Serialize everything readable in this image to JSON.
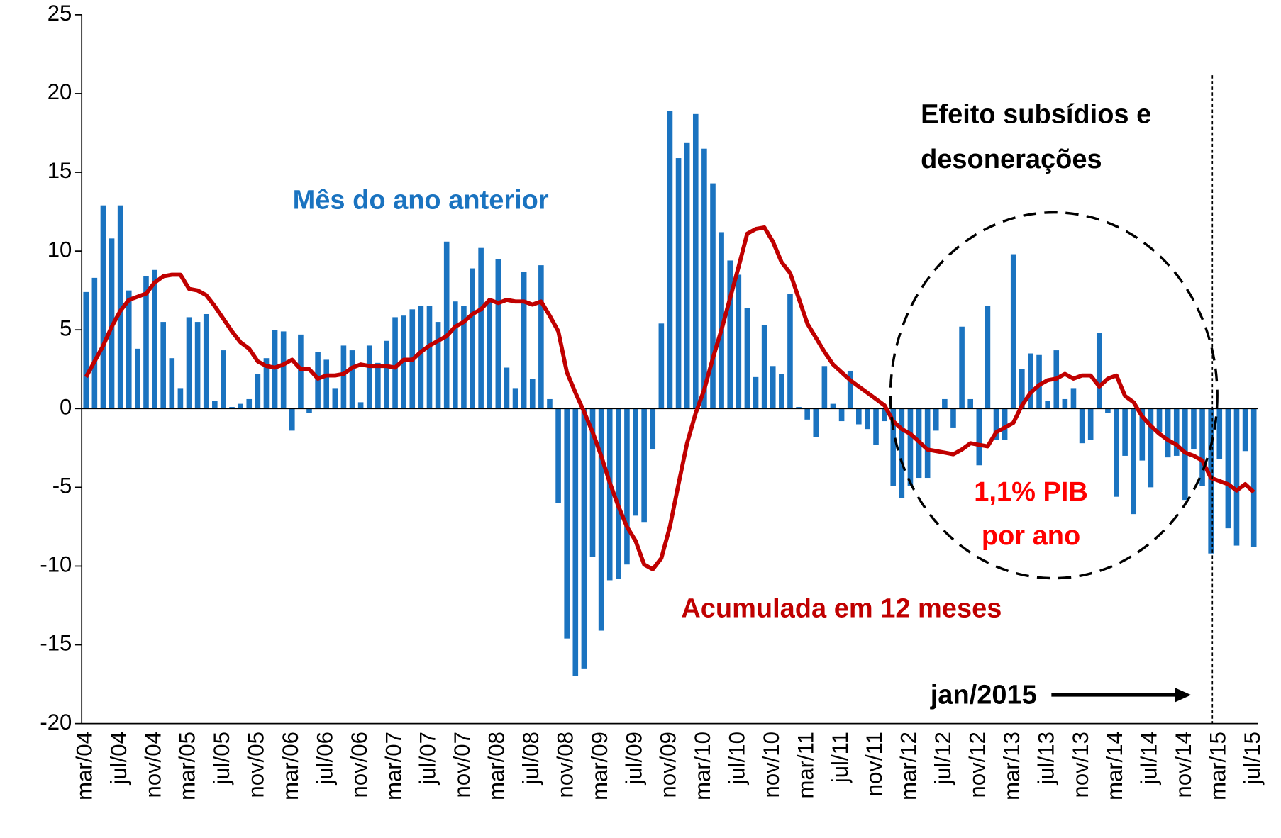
{
  "chart_data": {
    "type": "bar-line",
    "categories": [
      "mar/04",
      null,
      null,
      null,
      "jul/04",
      null,
      null,
      null,
      "nov/04",
      null,
      null,
      null,
      "mar/05",
      null,
      null,
      null,
      "jul/05",
      null,
      null,
      null,
      "nov/05",
      null,
      null,
      null,
      "mar/06",
      null,
      null,
      null,
      "jul/06",
      null,
      null,
      null,
      "nov/06",
      null,
      null,
      null,
      "mar/07",
      null,
      null,
      null,
      "jul/07",
      null,
      null,
      null,
      "nov/07",
      null,
      null,
      null,
      "mar/08",
      null,
      null,
      null,
      "jul/08",
      null,
      null,
      null,
      "nov/08",
      null,
      null,
      null,
      "mar/09",
      null,
      null,
      null,
      "jul/09",
      null,
      null,
      null,
      "nov/09",
      null,
      null,
      null,
      "mar/10",
      null,
      null,
      null,
      "jul/10",
      null,
      null,
      null,
      "nov/10",
      null,
      null,
      null,
      "mar/11",
      null,
      null,
      null,
      "jul/11",
      null,
      null,
      null,
      "nov/11",
      null,
      null,
      null,
      "mar/12",
      null,
      null,
      null,
      "jul/12",
      null,
      null,
      null,
      "nov/12",
      null,
      null,
      null,
      "mar/13",
      null,
      null,
      null,
      "jul/13",
      null,
      null,
      null,
      "nov/13",
      null,
      null,
      null,
      "mar/14",
      null,
      null,
      null,
      "jul/14",
      null,
      null,
      null,
      "nov/14",
      null,
      null,
      null,
      "mar/15",
      null,
      null,
      null,
      "jul/15"
    ],
    "series": [
      {
        "name": "Mês do ano anterior",
        "type": "bar",
        "color": "#1a73c0",
        "values": [
          7.4,
          8.3,
          12.9,
          10.8,
          12.9,
          7.5,
          3.8,
          8.4,
          8.8,
          5.5,
          3.2,
          1.3,
          5.8,
          5.5,
          6.0,
          0.5,
          3.7,
          0.1,
          0.3,
          0.6,
          2.2,
          3.2,
          5.0,
          4.9,
          -1.4,
          4.7,
          -0.3,
          3.6,
          3.1,
          1.3,
          4.0,
          3.7,
          0.4,
          4.0,
          2.9,
          4.3,
          5.8,
          5.9,
          6.3,
          6.5,
          6.5,
          5.5,
          10.6,
          6.8,
          6.5,
          8.9,
          10.2,
          6.9,
          9.5,
          2.6,
          1.3,
          8.7,
          1.9,
          9.1,
          0.6,
          -6.0,
          -14.6,
          -17.0,
          -16.5,
          -9.4,
          -14.1,
          -10.9,
          -10.8,
          -9.9,
          -6.8,
          -7.2,
          -2.6,
          5.4,
          18.9,
          15.9,
          16.9,
          18.7,
          16.5,
          14.3,
          11.2,
          9.4,
          8.5,
          6.4,
          2.0,
          5.3,
          2.7,
          2.2,
          7.3,
          0.1,
          -0.7,
          -1.8,
          2.7,
          0.3,
          -0.8,
          2.4,
          -1.0,
          -1.3,
          -2.3,
          -0.8,
          -4.9,
          -5.7,
          -4.9,
          -4.4,
          -4.4,
          -1.4,
          0.6,
          -1.2,
          5.2,
          0.6,
          -3.6,
          6.5,
          -2.0,
          -2.0,
          9.8,
          2.5,
          3.5,
          3.4,
          0.5,
          3.7,
          0.6,
          1.3,
          -2.2,
          -2.0,
          4.8,
          -0.3,
          -5.6,
          -3.0,
          -6.7,
          -3.3,
          -5.0,
          -1.5,
          -3.1,
          -3.0,
          -5.8,
          -2.6,
          -4.9,
          -9.2,
          -3.2,
          -7.6,
          -8.7,
          -2.7,
          -8.8
        ]
      },
      {
        "name": "Acumulada em 12 meses",
        "type": "line",
        "color": "#c00000",
        "values": [
          2.0,
          3.0,
          4.0,
          5.2,
          6.2,
          6.9,
          7.1,
          7.3,
          8.0,
          8.4,
          8.5,
          8.5,
          7.6,
          7.5,
          7.2,
          6.5,
          5.7,
          4.9,
          4.2,
          3.8,
          3.0,
          2.7,
          2.6,
          2.8,
          3.1,
          2.5,
          2.5,
          1.9,
          2.1,
          2.1,
          2.2,
          2.6,
          2.8,
          2.7,
          2.7,
          2.7,
          2.6,
          3.1,
          3.1,
          3.6,
          4.0,
          4.3,
          4.6,
          5.2,
          5.5,
          6.0,
          6.3,
          6.9,
          6.7,
          6.9,
          6.8,
          6.8,
          6.6,
          6.8,
          5.9,
          4.9,
          2.3,
          1.0,
          -0.2,
          -1.5,
          -3.0,
          -4.7,
          -6.2,
          -7.5,
          -8.4,
          -9.9,
          -10.2,
          -9.5,
          -7.5,
          -4.8,
          -2.2,
          -0.3,
          1.2,
          3.2,
          5.0,
          7.0,
          9.0,
          11.1,
          11.4,
          11.5,
          10.6,
          9.3,
          8.6,
          7.0,
          5.4,
          4.5,
          3.6,
          2.8,
          2.3,
          1.8,
          1.4,
          1.0,
          0.6,
          0.2,
          -0.8,
          -1.3,
          -1.6,
          -2.1,
          -2.6,
          -2.7,
          -2.8,
          -2.9,
          -2.6,
          -2.2,
          -2.3,
          -2.4,
          -1.5,
          -1.2,
          -0.9,
          0.2,
          1.0,
          1.5,
          1.8,
          1.9,
          2.2,
          1.9,
          2.1,
          2.1,
          1.4,
          1.9,
          2.1,
          0.8,
          0.4,
          -0.5,
          -1.1,
          -1.6,
          -2.0,
          -2.3,
          -2.8,
          -3.0,
          -3.3,
          -4.4,
          -4.6,
          -4.8,
          -5.2,
          -4.8,
          -5.3
        ]
      }
    ],
    "ylim": [
      -20,
      25
    ],
    "yticks": [
      -20,
      -15,
      -10,
      -5,
      0,
      5,
      10,
      15,
      20,
      25
    ],
    "annotations": [
      "Efeito subsídios e",
      "desonerações",
      "1,1% PIB",
      "por ano",
      "jan/2015"
    ]
  }
}
